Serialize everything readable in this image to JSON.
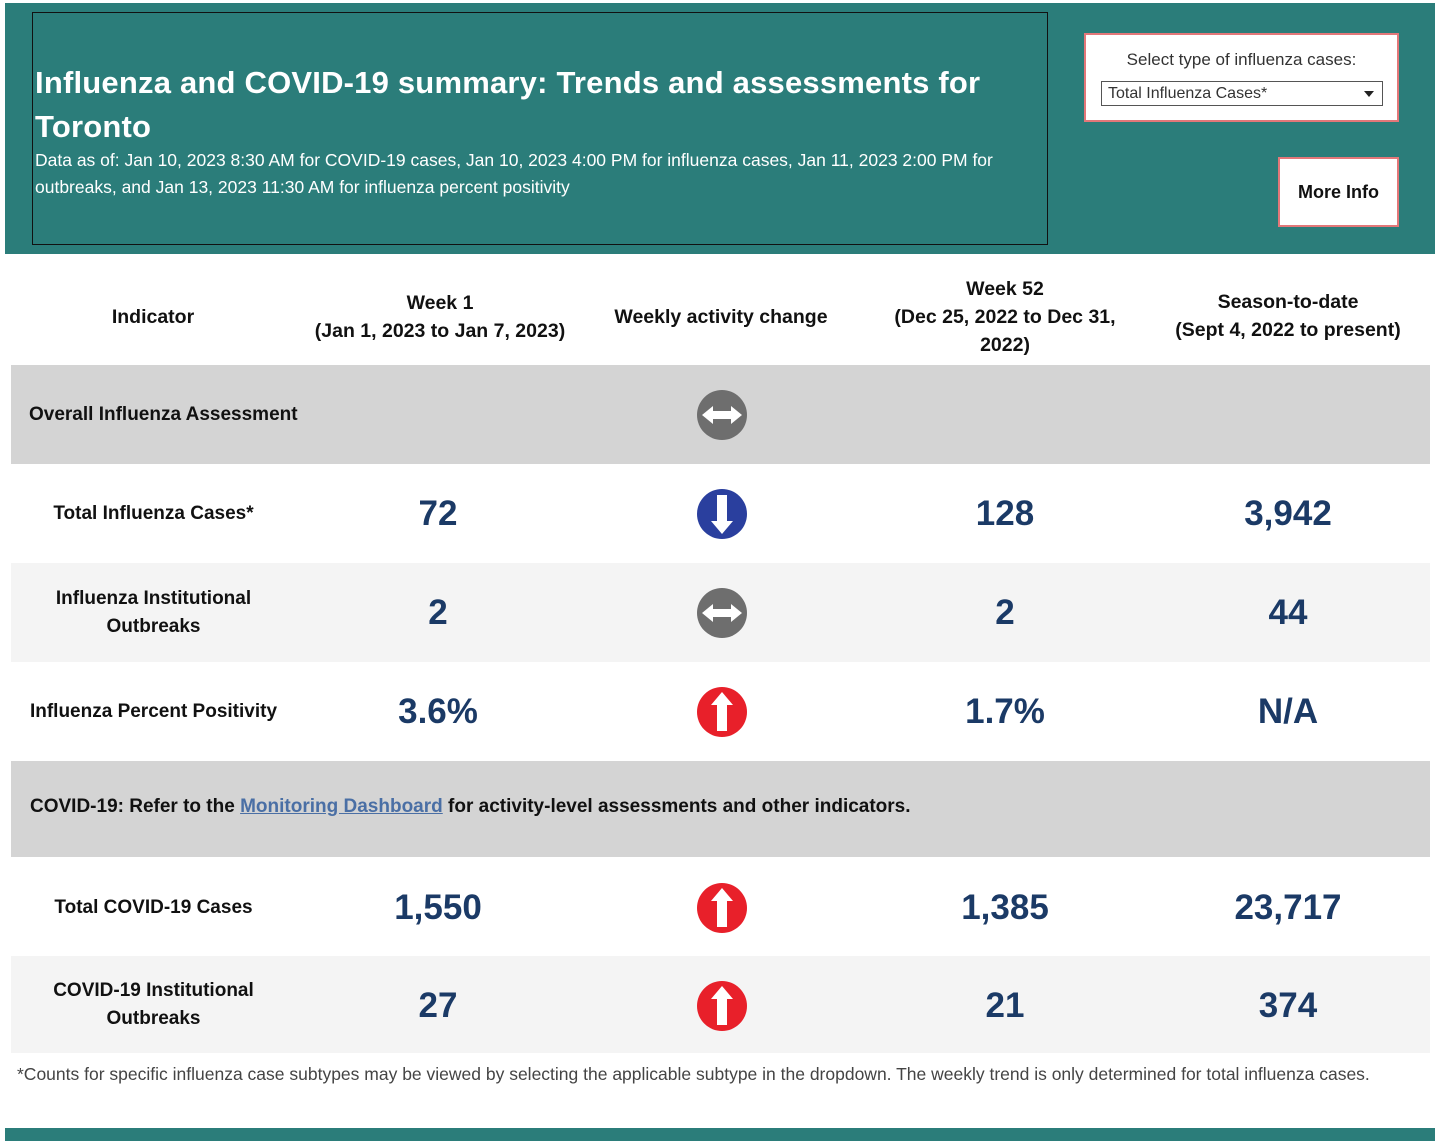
{
  "header": {
    "title": "Influenza and COVID-19 summary: Trends and assessments for Toronto",
    "subtitle": "Data as of: Jan 10, 2023 8:30 AM for COVID-19 cases, Jan 10, 2023 4:00 PM for influenza cases, Jan 11, 2023 2:00 PM for outbreaks, and Jan 13, 2023 11:30 AM for influenza percent positivity"
  },
  "filter": {
    "label": "Select type of influenza cases:",
    "selected": "Total Influenza Cases*"
  },
  "more_info_label": "More Info",
  "columns": {
    "indicator": "Indicator",
    "week1_title": "Week 1",
    "week1_range": "(Jan 1, 2023 to Jan 7, 2023)",
    "change": "Weekly activity change",
    "week52_title": "Week 52",
    "week52_range": "(Dec 25, 2022 to Dec 31, 2022)",
    "season_title": "Season-to-date",
    "season_range": "(Sept 4, 2022 to present)"
  },
  "overall": {
    "label": "Overall Influenza Assessment",
    "trend": "same"
  },
  "rows": [
    {
      "label": "Total Influenza Cases*",
      "week1": "72",
      "trend": "down",
      "week52": "128",
      "season": "3,942"
    },
    {
      "label": "Influenza Institutional Outbreaks",
      "week1": "2",
      "trend": "same",
      "week52": "2",
      "season": "44"
    },
    {
      "label": "Influenza Percent Positivity",
      "week1": "3.6%",
      "trend": "up",
      "week52": "1.7%",
      "season": "N/A"
    }
  ],
  "covid_note": {
    "before": "COVID-19: Refer to the ",
    "link": "Monitoring Dashboard",
    "after": " for activity-level assessments and other indicators."
  },
  "covid_rows": [
    {
      "label": "Total COVID-19 Cases",
      "week1": "1,550",
      "trend": "up",
      "week52": "1,385",
      "season": "23,717"
    },
    {
      "label": "COVID-19 Institutional Outbreaks",
      "week1": "27",
      "trend": "up",
      "week52": "21",
      "season": "374"
    }
  ],
  "footnote": "*Counts for specific influenza case subtypes may be viewed by selecting the applicable subtype in the dropdown. The weekly trend is only determined for total influenza cases.",
  "colors": {
    "header_bg": "#2b7d7a",
    "value_text": "#1b3a66",
    "trend_down": "#2a3f9e",
    "trend_up": "#e8202a",
    "trend_same": "#6e6e6e"
  }
}
